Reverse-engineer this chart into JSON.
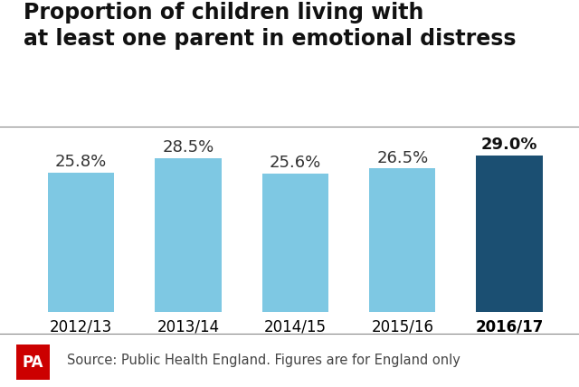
{
  "title": "Proportion of children living with\nat least one parent in emotional distress",
  "categories": [
    "2012/13",
    "2013/14",
    "2014/15",
    "2015/16",
    "2016/17"
  ],
  "values": [
    25.8,
    28.5,
    25.6,
    26.5,
    29.0
  ],
  "bar_colors": [
    "#7EC8E3",
    "#7EC8E3",
    "#7EC8E3",
    "#7EC8E3",
    "#1B4F72"
  ],
  "label_colors": [
    "#333333",
    "#333333",
    "#333333",
    "#333333",
    "#111111"
  ],
  "label_bold": [
    false,
    false,
    false,
    false,
    true
  ],
  "tick_bold": [
    false,
    false,
    false,
    false,
    true
  ],
  "source_text": "Source: Public Health England. Figures are for England only",
  "pa_box_color": "#CC0000",
  "pa_text_color": "#FFFFFF",
  "background_color": "#FFFFFF",
  "title_fontsize": 17,
  "bar_label_fontsize": 13,
  "tick_fontsize": 12,
  "source_fontsize": 10.5,
  "ylim": [
    0,
    33
  ]
}
